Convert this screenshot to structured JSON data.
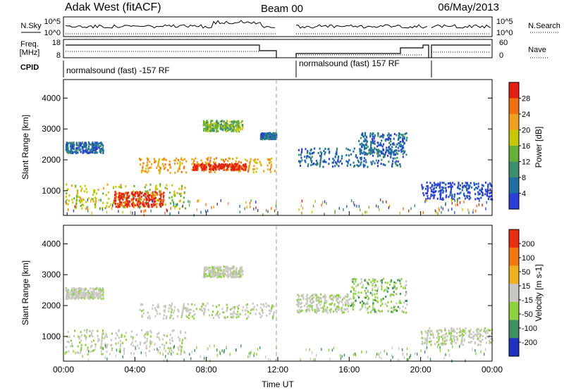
{
  "header": {
    "site": "Adak West (fitACF)",
    "beam": "Beam 00",
    "date": "06/May/2013"
  },
  "side_labels": {
    "nsky": "N.Sky",
    "nsearch": "N.Search",
    "freq": "Freq.",
    "freq_unit": "[MHz]",
    "nave": "Nave",
    "cpid": "CPID",
    "ylabel": "Slant Range [km]",
    "xlabel": "Time UT"
  },
  "noise_panel": {
    "left_ticks": [
      "10^5",
      "10^0"
    ],
    "right_ticks": [
      "10^5",
      "10^0"
    ]
  },
  "freq_panel": {
    "left_ticks": [
      "18",
      "8"
    ],
    "right_ticks": [
      "60",
      "0"
    ]
  },
  "cpid_panel": {
    "segments": [
      "normalsound (fast) -157 RF",
      "normalsound (fast) 157 RF"
    ]
  },
  "colors": {
    "power": [
      "#2b3fd6",
      "#1f6fa0",
      "#3e8f6e",
      "#66b03a",
      "#c8c800",
      "#f0a020",
      "#f07010",
      "#e02010"
    ],
    "velocity_pos": [
      "#2030c0",
      "#3f9060",
      "#8fd040"
    ],
    "velocity_neutral": "#c8c8c0",
    "velocity_neg": [
      "#f0b020",
      "#f07810",
      "#e83010"
    ]
  },
  "chart_data": [
    {
      "type": "heatmap",
      "name": "power",
      "xlim": [
        0,
        24
      ],
      "ylim": [
        200,
        4600
      ],
      "x_ticks": [
        "00:00",
        "04:00",
        "08:00",
        "12:00",
        "16:00",
        "20:00",
        "00:00"
      ],
      "y_ticks": [
        "1000",
        "2000",
        "3000",
        "4000"
      ],
      "colorbar_label": "Power [dB]",
      "colorbar_ticks": [
        "28",
        "24",
        "20",
        "16",
        "12",
        "8",
        "4"
      ],
      "blobs": [
        {
          "t0": 0.1,
          "t1": 6.8,
          "r0": 450,
          "r1": 1250,
          "level": 4
        },
        {
          "t0": 2.8,
          "t1": 5.6,
          "r0": 500,
          "r1": 1000,
          "level": 7
        },
        {
          "t0": 0.1,
          "t1": 2.2,
          "r0": 2250,
          "r1": 2600,
          "level": 1
        },
        {
          "t0": 4.2,
          "t1": 11.8,
          "r0": 1600,
          "r1": 2100,
          "level": 5
        },
        {
          "t0": 7.2,
          "t1": 10.2,
          "r0": 1700,
          "r1": 1900,
          "level": 7
        },
        {
          "t0": 7.8,
          "t1": 10.0,
          "r0": 2950,
          "r1": 3300,
          "level": 3
        },
        {
          "t0": 11.0,
          "t1": 11.9,
          "r0": 2700,
          "r1": 2900,
          "level": 1
        },
        {
          "t0": 13.0,
          "t1": 19.0,
          "r0": 1800,
          "r1": 2400,
          "level": 1
        },
        {
          "t0": 16.5,
          "t1": 19.2,
          "r0": 2200,
          "r1": 2900,
          "level": 1
        },
        {
          "t0": 20.0,
          "t1": 24.0,
          "r0": 750,
          "r1": 1300,
          "level": 0
        }
      ]
    },
    {
      "type": "heatmap",
      "name": "velocity",
      "xlim": [
        0,
        24
      ],
      "ylim": [
        200,
        4600
      ],
      "x_ticks": [
        "00:00",
        "04:00",
        "08:00",
        "12:00",
        "16:00",
        "20:00",
        "00:00"
      ],
      "y_ticks": [
        "1000",
        "2000",
        "3000",
        "4000"
      ],
      "colorbar_label": "Velocity [m s-1]",
      "colorbar_ticks": [
        "200",
        "100",
        "50",
        "15",
        "-15",
        "-50",
        "-100",
        "-200"
      ],
      "blobs": [
        {
          "t0": 0.1,
          "t1": 6.8,
          "r0": 450,
          "r1": 1250,
          "level": 0
        },
        {
          "t0": 4.2,
          "t1": 11.8,
          "r0": 1600,
          "r1": 2100,
          "level": 0
        },
        {
          "t0": 0.1,
          "t1": 2.2,
          "r0": 2250,
          "r1": 2600,
          "level": 0
        },
        {
          "t0": 7.8,
          "t1": 10.0,
          "r0": 2950,
          "r1": 3300,
          "level": 0
        },
        {
          "t0": 13.0,
          "t1": 16.0,
          "r0": 1800,
          "r1": 2400,
          "level": 0
        },
        {
          "t0": 16.0,
          "t1": 19.2,
          "r0": 1800,
          "r1": 2900,
          "level": 1
        },
        {
          "t0": 20.0,
          "t1": 24.0,
          "r0": 750,
          "r1": 1300,
          "level": 0
        }
      ]
    }
  ]
}
